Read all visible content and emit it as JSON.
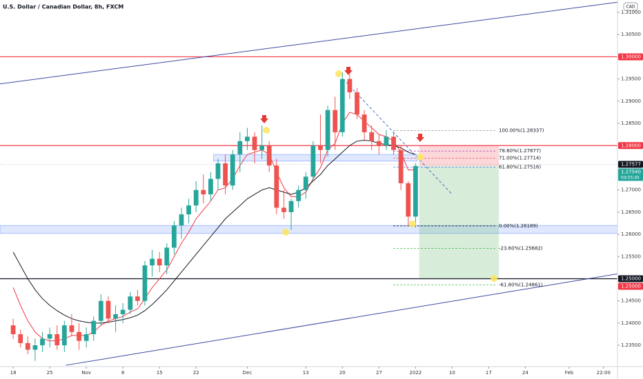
{
  "chart_data": {
    "type": "candlestick",
    "title": "U.S. Dollar / Canadian Dollar, 8h, FXCM",
    "currency": "CAD",
    "ylim": [
      1.2302,
      1.3128
    ],
    "xlim": [
      -1.8,
      82.6
    ],
    "grid": false,
    "up_color": "#26a69a",
    "down_color": "#ef5350",
    "yticks": [
      {
        "value": 1.31,
        "label": "1.31000"
      },
      {
        "value": 1.305,
        "label": "1.30500"
      },
      {
        "value": 1.295,
        "label": "1.29500"
      },
      {
        "value": 1.29,
        "label": "1.29000"
      },
      {
        "value": 1.285,
        "label": "1.28500"
      },
      {
        "value": 1.27,
        "label": "1.27000"
      },
      {
        "value": 1.265,
        "label": "1.26500"
      },
      {
        "value": 1.26,
        "label": "1.26000"
      },
      {
        "value": 1.255,
        "label": "1.25500"
      },
      {
        "value": 1.245,
        "label": "1.24500"
      },
      {
        "value": 1.24,
        "label": "1.24000"
      },
      {
        "value": 1.235,
        "label": "1.23500"
      }
    ],
    "xticks": [
      {
        "value": 0,
        "label": "18"
      },
      {
        "value": 5,
        "label": "25"
      },
      {
        "value": 10,
        "label": "Nov"
      },
      {
        "value": 15,
        "label": "8"
      },
      {
        "value": 20,
        "label": "15"
      },
      {
        "value": 25,
        "label": "22"
      },
      {
        "value": 32,
        "label": "Dec"
      },
      {
        "value": 40,
        "label": "13"
      },
      {
        "value": 45,
        "label": "20"
      },
      {
        "value": 50,
        "label": "27"
      },
      {
        "value": 55,
        "label": "2022"
      },
      {
        "value": 60,
        "label": "10"
      },
      {
        "value": 65,
        "label": "17"
      },
      {
        "value": 70,
        "label": "24"
      },
      {
        "value": 76,
        "label": "Feb"
      },
      {
        "value": 80.7,
        "label": "22:00"
      }
    ],
    "x": [
      0,
      1,
      2,
      3,
      4,
      5,
      6,
      7,
      8,
      9,
      10,
      11,
      12,
      13,
      14,
      15,
      16,
      17,
      18,
      19,
      20,
      21,
      22,
      23,
      24,
      25,
      26,
      27,
      28,
      29,
      30,
      31,
      32,
      33,
      34,
      35,
      36,
      37,
      38,
      39,
      40,
      41,
      42,
      43,
      44,
      45,
      46,
      47,
      48,
      49,
      50,
      51,
      52,
      53,
      54,
      55
    ],
    "candles": [
      [
        1.2395,
        1.241,
        1.2365,
        1.2375
      ],
      [
        1.2375,
        1.2385,
        1.2345,
        1.2355
      ],
      [
        1.2355,
        1.237,
        1.233,
        1.234
      ],
      [
        1.234,
        1.2365,
        1.2315,
        1.235
      ],
      [
        1.235,
        1.238,
        1.2335,
        1.2365
      ],
      [
        1.2365,
        1.239,
        1.2345,
        1.2375
      ],
      [
        1.2375,
        1.2395,
        1.234,
        1.235
      ],
      [
        1.235,
        1.2405,
        1.2335,
        1.2395
      ],
      [
        1.2395,
        1.242,
        1.237,
        1.238
      ],
      [
        1.238,
        1.24,
        1.234,
        1.236
      ],
      [
        1.236,
        1.239,
        1.2345,
        1.2375
      ],
      [
        1.2375,
        1.2415,
        1.236,
        1.2405
      ],
      [
        1.2405,
        1.2465,
        1.2395,
        1.245
      ],
      [
        1.245,
        1.246,
        1.24,
        1.241
      ],
      [
        1.241,
        1.244,
        1.238,
        1.242
      ],
      [
        1.242,
        1.2445,
        1.24,
        1.243
      ],
      [
        1.243,
        1.247,
        1.242,
        1.246
      ],
      [
        1.246,
        1.2475,
        1.244,
        1.245
      ],
      [
        1.245,
        1.254,
        1.244,
        1.253
      ],
      [
        1.253,
        1.2565,
        1.2505,
        1.2545
      ],
      [
        1.2545,
        1.256,
        1.2515,
        1.253
      ],
      [
        1.253,
        1.258,
        1.251,
        1.257
      ],
      [
        1.257,
        1.263,
        1.2555,
        1.262
      ],
      [
        1.262,
        1.266,
        1.259,
        1.2645
      ],
      [
        1.2645,
        1.268,
        1.2625,
        1.2665
      ],
      [
        1.2665,
        1.272,
        1.265,
        1.27
      ],
      [
        1.27,
        1.2735,
        1.267,
        1.269
      ],
      [
        1.269,
        1.274,
        1.2675,
        1.2725
      ],
      [
        1.2725,
        1.277,
        1.27,
        1.276
      ],
      [
        1.276,
        1.278,
        1.269,
        1.271
      ],
      [
        1.271,
        1.279,
        1.27,
        1.278
      ],
      [
        1.278,
        1.283,
        1.274,
        1.281
      ],
      [
        1.281,
        1.284,
        1.279,
        1.282
      ],
      [
        1.282,
        1.283,
        1.276,
        1.279
      ],
      [
        1.279,
        1.2845,
        1.277,
        1.28
      ],
      [
        1.28,
        1.281,
        1.274,
        1.2755
      ],
      [
        1.2755,
        1.277,
        1.2645,
        1.266
      ],
      [
        1.266,
        1.27,
        1.2635,
        1.265
      ],
      [
        1.265,
        1.268,
        1.261,
        1.2675
      ],
      [
        1.2675,
        1.271,
        1.266,
        1.27
      ],
      [
        1.27,
        1.274,
        1.268,
        1.273
      ],
      [
        1.273,
        1.281,
        1.272,
        1.28
      ],
      [
        1.28,
        1.287,
        1.276,
        1.279
      ],
      [
        1.279,
        1.289,
        1.2775,
        1.288
      ],
      [
        1.288,
        1.291,
        1.279,
        1.283
      ],
      [
        1.283,
        1.2965,
        1.282,
        1.295
      ],
      [
        1.295,
        1.296,
        1.2905,
        1.292
      ],
      [
        1.292,
        1.293,
        1.286,
        1.287
      ],
      [
        1.287,
        1.288,
        1.281,
        1.283
      ],
      [
        1.283,
        1.2845,
        1.279,
        1.281
      ],
      [
        1.281,
        1.2825,
        1.278,
        1.28
      ],
      [
        1.28,
        1.2835,
        1.279,
        1.282
      ],
      [
        1.282,
        1.283,
        1.278,
        1.279
      ],
      [
        1.279,
        1.28,
        1.27,
        1.2715
      ],
      [
        1.2715,
        1.272,
        1.262,
        1.264
      ],
      [
        1.264,
        1.276,
        1.2615,
        1.2754
      ]
    ],
    "ma": [
      {
        "color": "#f23645",
        "values": [
          1.248,
          1.244,
          1.2405,
          1.238,
          1.2365,
          1.236,
          1.236,
          1.2365,
          1.2372,
          1.2372,
          1.2372,
          1.238,
          1.2395,
          1.2405,
          1.241,
          1.2415,
          1.2425,
          1.2432,
          1.2455,
          1.248,
          1.25,
          1.252,
          1.255,
          1.258,
          1.2605,
          1.2635,
          1.2655,
          1.2675,
          1.27,
          1.2705,
          1.2725,
          1.2755,
          1.278,
          1.2785,
          1.279,
          1.278,
          1.274,
          1.2705,
          1.2685,
          1.2685,
          1.2695,
          1.2725,
          1.275,
          1.279,
          1.2805,
          1.285,
          1.2875,
          1.287,
          1.2855,
          1.284,
          1.2825,
          1.282,
          1.281,
          1.2785,
          1.2745,
          1.2745
        ]
      },
      {
        "color": "#131722",
        "values": [
          1.256,
          1.253,
          1.25,
          1.2475,
          1.2455,
          1.244,
          1.2428,
          1.2418,
          1.241,
          1.2405,
          1.2402,
          1.24,
          1.24,
          1.2402,
          1.2405,
          1.2408,
          1.2412,
          1.2418,
          1.2428,
          1.2442,
          1.2458,
          1.2475,
          1.2495,
          1.2515,
          1.2535,
          1.2555,
          1.2575,
          1.2595,
          1.2615,
          1.2635,
          1.265,
          1.2665,
          1.268,
          1.269,
          1.27,
          1.2705,
          1.27,
          1.2695,
          1.269,
          1.2695,
          1.2705,
          1.272,
          1.2735,
          1.2755,
          1.277,
          1.2785,
          1.28,
          1.281,
          1.2812,
          1.281,
          1.2805,
          1.2802,
          1.28,
          1.2795,
          1.2785,
          1.278
        ]
      }
    ],
    "trendlines": [
      {
        "color": "#3a4a9f",
        "dash": false,
        "x": [
          -1.8,
          82.6
        ],
        "y": [
          1.2939,
          1.3123
        ]
      },
      {
        "color": "#3a4a9f",
        "dash": false,
        "x": [
          7.2,
          82.6
        ],
        "y": [
          1.2305,
          1.2511
        ]
      },
      {
        "color": "#4a6bc4",
        "dash": true,
        "x": [
          45.1,
          60
        ],
        "y": [
          1.295,
          1.269
        ]
      }
    ],
    "hlines": [
      {
        "value": 1.3,
        "color": "#f23645"
      },
      {
        "value": 1.28,
        "color": "#f23645"
      },
      {
        "value": 1.25,
        "color": "#131722"
      },
      {
        "value": 1.27577,
        "color": "#888888",
        "dash": true
      }
    ],
    "zones": [
      {
        "x": [
          27.4,
          55.25
        ],
        "y": [
          1.2765,
          1.278
        ]
      },
      {
        "x": [
          -1.8,
          82.6
        ],
        "y": [
          1.2602,
          1.262
        ]
      }
    ],
    "position": {
      "x": [
        55.5,
        66.4
      ],
      "entry": 1.2754,
      "stop": 1.28,
      "target": 1.25
    },
    "fib": {
      "x": [
        51.95,
        66.1
      ],
      "levels": [
        {
          "value": 1.28337,
          "label": "100.00%(1.28337)",
          "color": "#787b86"
        },
        {
          "value": 1.27877,
          "label": "78.60%(1.27877)",
          "color": "#9c27b0"
        },
        {
          "value": 1.27714,
          "label": "71.00%(1.27714)",
          "color": "#f23645"
        },
        {
          "value": 1.27516,
          "label": "61.80%(1.27516)",
          "color": "#2962ff"
        },
        {
          "value": 1.26189,
          "label": "0.00%(1.26189)",
          "color": "#131722"
        },
        {
          "value": 1.25682,
          "label": "-23.60%(1.25682)",
          "color": "#22ab22"
        },
        {
          "value": 1.24861,
          "label": "-61.80%(1.24861)",
          "color": "#22ab22"
        }
      ]
    },
    "axis_labels": [
      {
        "value": 1.3,
        "label": "1.30000",
        "color": "#f23645"
      },
      {
        "value": 1.28,
        "label": "1.28000",
        "color": "#f23645"
      },
      {
        "value": 1.27577,
        "label": "1.27577",
        "color": "#131722"
      },
      {
        "value": 1.2754,
        "label": "1.27540",
        "sub": "04:55:45",
        "color": "#26a69a"
      },
      {
        "value": 1.25,
        "label": "1.25000",
        "color": "#131722"
      },
      {
        "value": 1.25,
        "label": "1.25000",
        "color": "#f23645"
      }
    ]
  }
}
